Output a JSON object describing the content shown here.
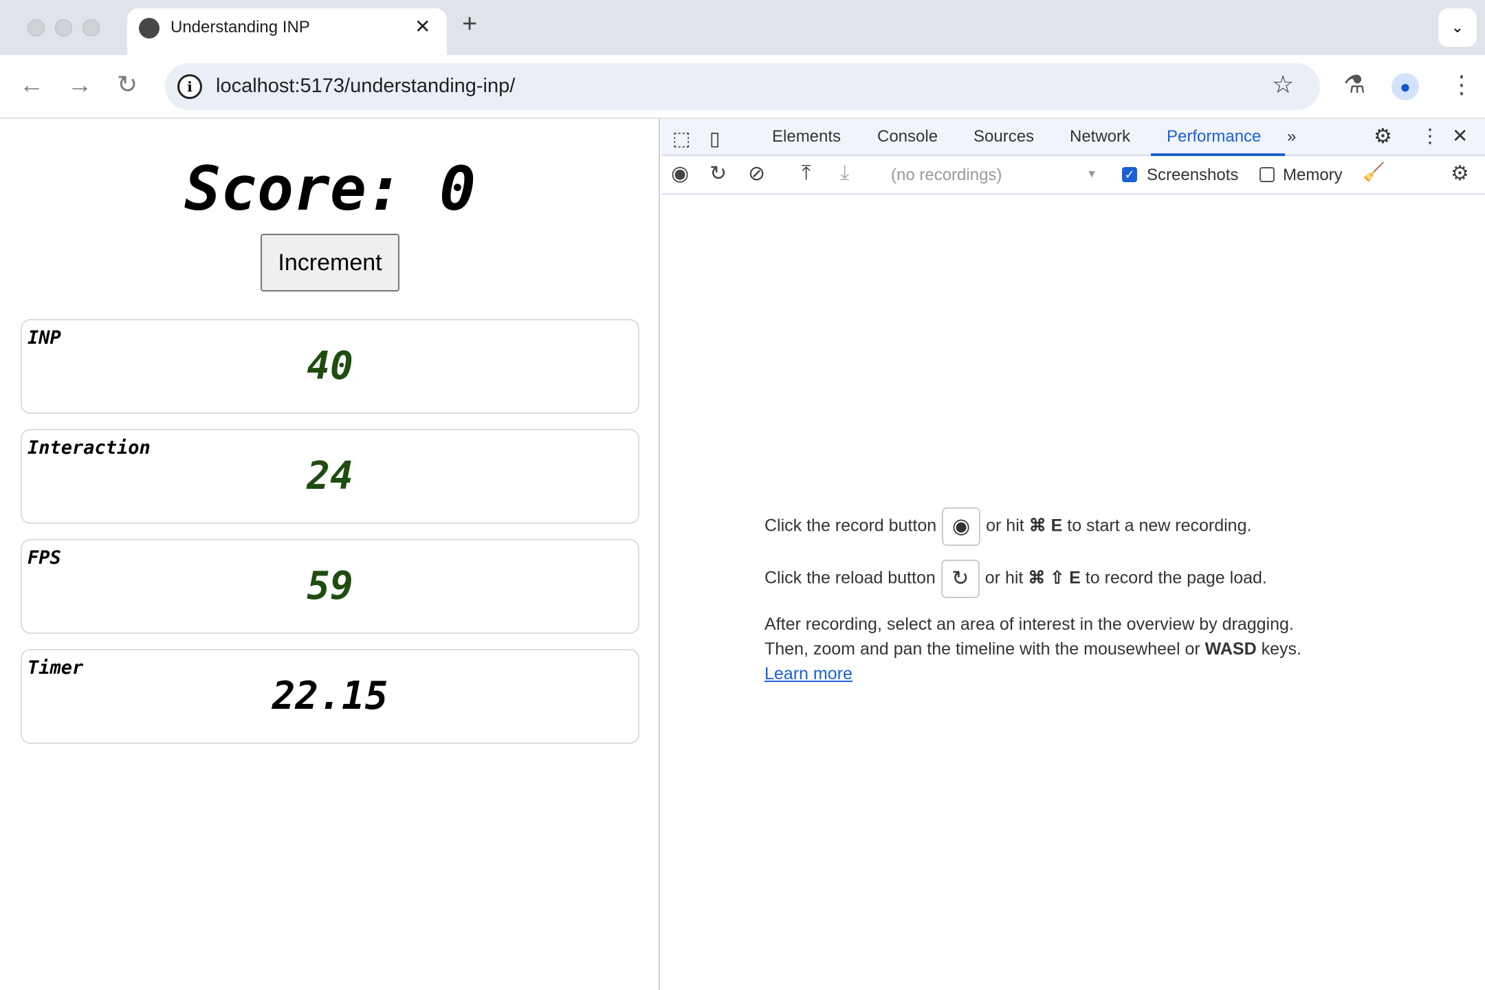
{
  "browser": {
    "tab_title": "Understanding INP",
    "url": "localhost:5173/understanding-inp/"
  },
  "page": {
    "score_label": "Score: 0",
    "increment_label": "Increment",
    "cards": [
      {
        "label": "INP",
        "value": "40"
      },
      {
        "label": "Interaction",
        "value": "24"
      },
      {
        "label": "FPS",
        "value": "59"
      },
      {
        "label": "Timer",
        "value": "22.15"
      }
    ],
    "value_color": "#1e4d0f"
  },
  "devtools": {
    "tabs": [
      "Elements",
      "Console",
      "Sources",
      "Network",
      "Performance"
    ],
    "active_tab": "Performance",
    "recordings_placeholder": "(no recordings)",
    "screenshots_label": "Screenshots",
    "screenshots_checked": true,
    "memory_label": "Memory",
    "memory_checked": false,
    "msg1a": "Click the record button",
    "msg1b": "or hit",
    "msg1c": "⌘ E",
    "msg1d": "to start a new recording.",
    "msg2a": "Click the reload button",
    "msg2b": "or hit",
    "msg2c": "⌘ ⇧ E",
    "msg2d": "to record the page load.",
    "msg3": "After recording, select an area of interest in the overview by dragging.",
    "msg4a": "Then, zoom and pan the timeline with the mousewheel or",
    "msg4b": "WASD",
    "msg4c": "keys.",
    "learn_more": "Learn more"
  }
}
